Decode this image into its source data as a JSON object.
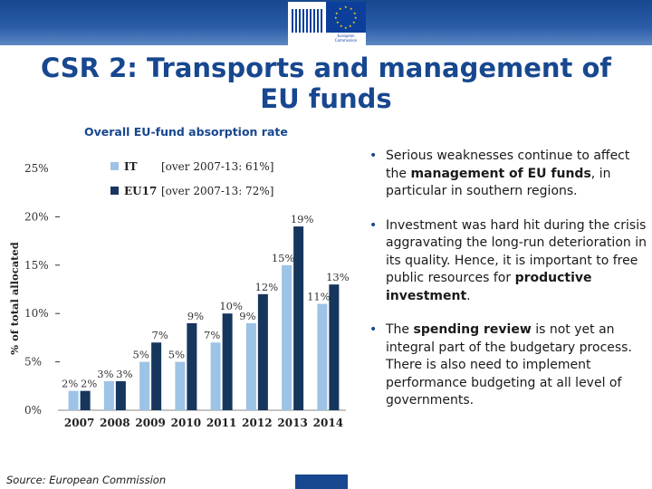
{
  "header": {
    "logo_label": "European Commission",
    "title": "CSR 2: Transports and management of EU funds"
  },
  "chart_caption": "Overall EU-fund absorption rate",
  "chart_data": {
    "type": "bar",
    "title": "",
    "ylabel": "% of total allocated",
    "xlabel": "",
    "ylim": [
      0,
      25
    ],
    "yticks": [
      "0%",
      "5%",
      "10%",
      "15%",
      "20%",
      "25%"
    ],
    "categories": [
      "2007",
      "2008",
      "2009",
      "2010",
      "2011",
      "2012",
      "2013",
      "2014"
    ],
    "series": [
      {
        "name": "IT",
        "note": "[over 2007-13: 61%]",
        "color": "#9dc3e6",
        "values": [
          2,
          3,
          5,
          5,
          7,
          9,
          15,
          11
        ],
        "labels": [
          "2%",
          "3%",
          "5%",
          "5%",
          "7%",
          "9%",
          "15%",
          "11%"
        ]
      },
      {
        "name": "EU17",
        "note": "[over 2007-13: 72%]",
        "color": "#17365d",
        "values": [
          2,
          3,
          7,
          9,
          10,
          12,
          19,
          13
        ],
        "labels": [
          "2%",
          "3%",
          "7%",
          "9%",
          "10%",
          "12%",
          "19%",
          "13%"
        ]
      }
    ],
    "legend_position": "top-left",
    "grid": false
  },
  "bullets": {
    "b1": {
      "pre": "Serious weaknesses continue to affect the ",
      "bold": "management of EU funds",
      "post": ", in particular in southern regions."
    },
    "b2": {
      "pre": "Investment was hard hit during the crisis aggravating the long-run deterioration in its quality. Hence, it is important to free public resources for ",
      "bold": "productive investment",
      "post": "."
    },
    "b3": {
      "pre": "The ",
      "bold": "spending review",
      "post": " is not yet an integral part of the budgetary process. There is also need to implement performance budgeting at all level of governments."
    }
  },
  "source": "Source: European Commission"
}
